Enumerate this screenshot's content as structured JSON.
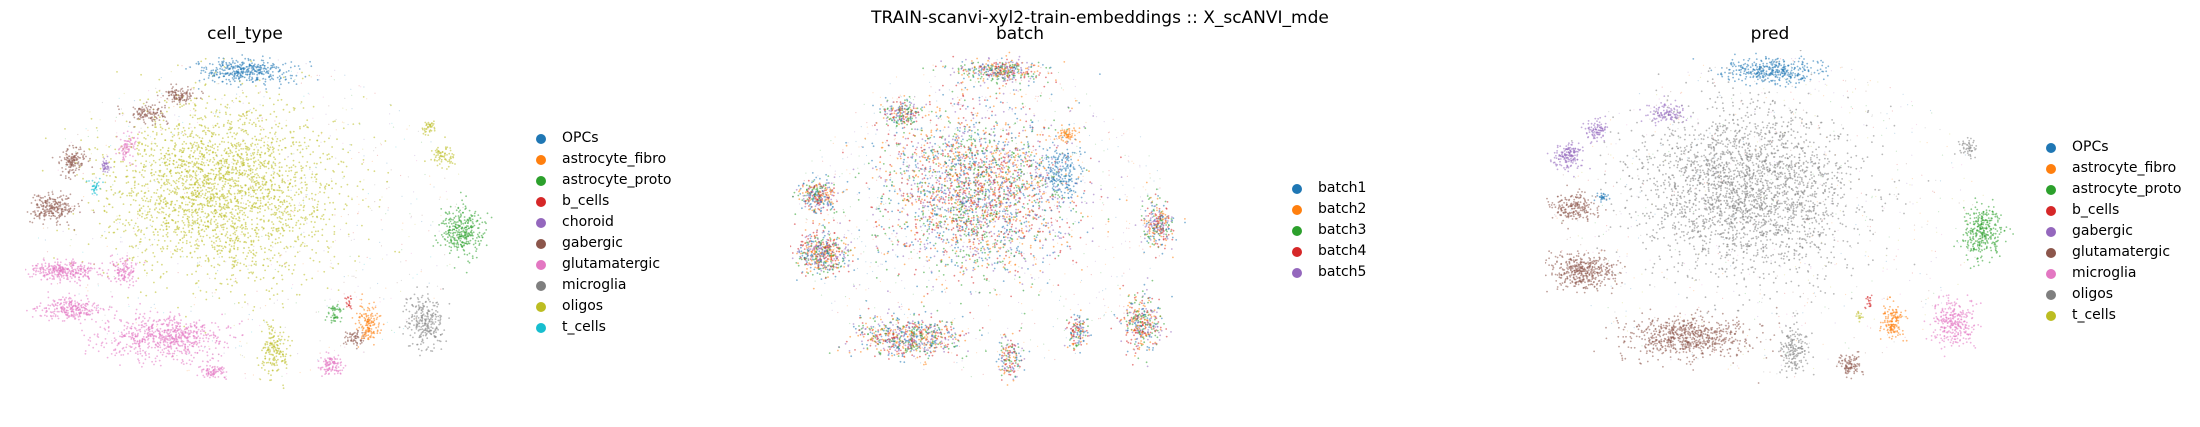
{
  "figure": {
    "suptitle": "TRAIN-scanvi-xyl2-train-embeddings :: X_scANVI_mde"
  },
  "chart_data": [
    {
      "type": "scatter",
      "title": "cell_type",
      "xlabel": "",
      "ylabel": "",
      "grid": false,
      "legend_position": "right",
      "legend": [
        {
          "label": "OPCs",
          "color": "#1f77b4"
        },
        {
          "label": "astrocyte_fibro",
          "color": "#ff7f0e"
        },
        {
          "label": "astrocyte_proto",
          "color": "#2ca02c"
        },
        {
          "label": "b_cells",
          "color": "#d62728"
        },
        {
          "label": "choroid",
          "color": "#9467bd"
        },
        {
          "label": "gabergic",
          "color": "#8c564b"
        },
        {
          "label": "glutamatergic",
          "color": "#e377c2"
        },
        {
          "label": "microglia",
          "color": "#7f7f7f"
        },
        {
          "label": "oligos",
          "color": "#bcbd22"
        },
        {
          "label": "t_cells",
          "color": "#17becf"
        }
      ],
      "clusters": [
        {
          "category": "oligos",
          "cx": 0.42,
          "cy": 0.4,
          "rx": 0.24,
          "ry": 0.25,
          "n": 2600
        },
        {
          "category": "OPCs",
          "cx": 0.47,
          "cy": 0.06,
          "rx": 0.1,
          "ry": 0.035,
          "n": 380
        },
        {
          "category": "glutamatergic",
          "cx": 0.3,
          "cy": 0.82,
          "rx": 0.13,
          "ry": 0.06,
          "n": 700
        },
        {
          "category": "glutamatergic",
          "cx": 0.08,
          "cy": 0.63,
          "rx": 0.07,
          "ry": 0.03,
          "n": 320
        },
        {
          "category": "glutamatergic",
          "cx": 0.1,
          "cy": 0.74,
          "rx": 0.07,
          "ry": 0.03,
          "n": 260
        },
        {
          "category": "glutamatergic",
          "cx": 0.21,
          "cy": 0.63,
          "rx": 0.03,
          "ry": 0.04,
          "n": 120
        },
        {
          "category": "glutamatergic",
          "cx": 0.65,
          "cy": 0.9,
          "rx": 0.025,
          "ry": 0.03,
          "n": 110
        },
        {
          "category": "glutamatergic",
          "cx": 0.22,
          "cy": 0.28,
          "rx": 0.02,
          "ry": 0.04,
          "n": 80
        },
        {
          "category": "glutamatergic",
          "cx": 0.4,
          "cy": 0.92,
          "rx": 0.03,
          "ry": 0.02,
          "n": 80
        },
        {
          "category": "gabergic",
          "cx": 0.06,
          "cy": 0.45,
          "rx": 0.05,
          "ry": 0.04,
          "n": 240
        },
        {
          "category": "gabergic",
          "cx": 0.1,
          "cy": 0.32,
          "rx": 0.03,
          "ry": 0.04,
          "n": 140
        },
        {
          "category": "gabergic",
          "cx": 0.26,
          "cy": 0.18,
          "rx": 0.04,
          "ry": 0.03,
          "n": 120
        },
        {
          "category": "gabergic",
          "cx": 0.33,
          "cy": 0.13,
          "rx": 0.035,
          "ry": 0.025,
          "n": 110
        },
        {
          "category": "gabergic",
          "cx": 0.7,
          "cy": 0.82,
          "rx": 0.02,
          "ry": 0.02,
          "n": 60
        },
        {
          "category": "astrocyte_proto",
          "cx": 0.93,
          "cy": 0.52,
          "rx": 0.045,
          "ry": 0.07,
          "n": 320
        },
        {
          "category": "astrocyte_proto",
          "cx": 0.66,
          "cy": 0.75,
          "rx": 0.015,
          "ry": 0.03,
          "n": 50
        },
        {
          "category": "microglia",
          "cx": 0.85,
          "cy": 0.78,
          "rx": 0.04,
          "ry": 0.07,
          "n": 260
        },
        {
          "category": "astrocyte_fibro",
          "cx": 0.73,
          "cy": 0.78,
          "rx": 0.022,
          "ry": 0.05,
          "n": 150
        },
        {
          "category": "oligos",
          "cx": 0.53,
          "cy": 0.86,
          "rx": 0.03,
          "ry": 0.07,
          "n": 170
        },
        {
          "category": "oligos",
          "cx": 0.89,
          "cy": 0.3,
          "rx": 0.025,
          "ry": 0.03,
          "n": 70
        },
        {
          "category": "oligos",
          "cx": 0.86,
          "cy": 0.22,
          "rx": 0.015,
          "ry": 0.02,
          "n": 40
        },
        {
          "category": "choroid",
          "cx": 0.17,
          "cy": 0.33,
          "rx": 0.012,
          "ry": 0.02,
          "n": 40
        },
        {
          "category": "t_cells",
          "cx": 0.15,
          "cy": 0.39,
          "rx": 0.012,
          "ry": 0.02,
          "n": 35
        },
        {
          "category": "b_cells",
          "cx": 0.69,
          "cy": 0.72,
          "rx": 0.008,
          "ry": 0.02,
          "n": 20
        }
      ]
    },
    {
      "type": "scatter",
      "title": "batch",
      "xlabel": "",
      "ylabel": "",
      "grid": false,
      "legend_position": "right",
      "legend": [
        {
          "label": "batch1",
          "color": "#1f77b4"
        },
        {
          "label": "batch2",
          "color": "#ff7f0e"
        },
        {
          "label": "batch3",
          "color": "#2ca02c"
        },
        {
          "label": "batch4",
          "color": "#d62728"
        },
        {
          "label": "batch5",
          "color": "#9467bd"
        }
      ],
      "clusters": [
        {
          "category": "mixed",
          "cx": 0.47,
          "cy": 0.4,
          "rx": 0.23,
          "ry": 0.24,
          "n": 2800
        },
        {
          "category": "mixed",
          "cx": 0.53,
          "cy": 0.06,
          "rx": 0.1,
          "ry": 0.035,
          "n": 400
        },
        {
          "category": "mixed",
          "cx": 0.3,
          "cy": 0.82,
          "rx": 0.13,
          "ry": 0.06,
          "n": 700
        },
        {
          "category": "mixed",
          "cx": 0.08,
          "cy": 0.58,
          "rx": 0.07,
          "ry": 0.06,
          "n": 500
        },
        {
          "category": "mixed",
          "cx": 0.07,
          "cy": 0.42,
          "rx": 0.05,
          "ry": 0.05,
          "n": 300
        },
        {
          "category": "mixed",
          "cx": 0.28,
          "cy": 0.18,
          "rx": 0.05,
          "ry": 0.04,
          "n": 200
        },
        {
          "category": "mixed",
          "cx": 0.88,
          "cy": 0.78,
          "rx": 0.05,
          "ry": 0.08,
          "n": 360
        },
        {
          "category": "mixed",
          "cx": 0.92,
          "cy": 0.5,
          "rx": 0.04,
          "ry": 0.07,
          "n": 280
        },
        {
          "category": "mixed",
          "cx": 0.72,
          "cy": 0.8,
          "rx": 0.025,
          "ry": 0.05,
          "n": 140
        },
        {
          "category": "mixed",
          "cx": 0.55,
          "cy": 0.88,
          "rx": 0.03,
          "ry": 0.06,
          "n": 160
        },
        {
          "category": "batch1",
          "cx": 0.68,
          "cy": 0.35,
          "rx": 0.05,
          "ry": 0.08,
          "n": 200
        },
        {
          "category": "batch2",
          "cx": 0.69,
          "cy": 0.24,
          "rx": 0.025,
          "ry": 0.02,
          "n": 60
        }
      ]
    },
    {
      "type": "scatter",
      "title": "pred",
      "xlabel": "",
      "ylabel": "",
      "grid": false,
      "legend_position": "right",
      "legend": [
        {
          "label": "OPCs",
          "color": "#1f77b4"
        },
        {
          "label": "astrocyte_fibro",
          "color": "#ff7f0e"
        },
        {
          "label": "astrocyte_proto",
          "color": "#2ca02c"
        },
        {
          "label": "b_cells",
          "color": "#d62728"
        },
        {
          "label": "gabergic",
          "color": "#9467bd"
        },
        {
          "label": "glutamatergic",
          "color": "#8c564b"
        },
        {
          "label": "microglia",
          "color": "#e377c2"
        },
        {
          "label": "oligos",
          "color": "#7f7f7f"
        },
        {
          "label": "t_cells",
          "color": "#bcbd22"
        }
      ],
      "clusters": [
        {
          "category": "oligos",
          "cx": 0.43,
          "cy": 0.4,
          "rx": 0.23,
          "ry": 0.24,
          "n": 2600
        },
        {
          "category": "OPCs",
          "cx": 0.48,
          "cy": 0.06,
          "rx": 0.1,
          "ry": 0.035,
          "n": 380
        },
        {
          "category": "glutamatergic",
          "cx": 0.3,
          "cy": 0.82,
          "rx": 0.13,
          "ry": 0.06,
          "n": 700
        },
        {
          "category": "glutamatergic",
          "cx": 0.08,
          "cy": 0.63,
          "rx": 0.07,
          "ry": 0.05,
          "n": 420
        },
        {
          "category": "glutamatergic",
          "cx": 0.06,
          "cy": 0.45,
          "rx": 0.05,
          "ry": 0.04,
          "n": 200
        },
        {
          "category": "glutamatergic",
          "cx": 0.65,
          "cy": 0.9,
          "rx": 0.025,
          "ry": 0.03,
          "n": 100
        },
        {
          "category": "gabergic",
          "cx": 0.05,
          "cy": 0.3,
          "rx": 0.03,
          "ry": 0.04,
          "n": 160
        },
        {
          "category": "gabergic",
          "cx": 0.26,
          "cy": 0.18,
          "rx": 0.04,
          "ry": 0.03,
          "n": 110
        },
        {
          "category": "gabergic",
          "cx": 0.11,
          "cy": 0.23,
          "rx": 0.025,
          "ry": 0.03,
          "n": 90
        },
        {
          "category": "astrocyte_proto",
          "cx": 0.93,
          "cy": 0.52,
          "rx": 0.045,
          "ry": 0.07,
          "n": 320
        },
        {
          "category": "microglia",
          "cx": 0.87,
          "cy": 0.78,
          "rx": 0.045,
          "ry": 0.07,
          "n": 300
        },
        {
          "category": "astrocyte_fibro",
          "cx": 0.74,
          "cy": 0.78,
          "rx": 0.022,
          "ry": 0.05,
          "n": 150
        },
        {
          "category": "oligos",
          "cx": 0.53,
          "cy": 0.86,
          "rx": 0.03,
          "ry": 0.07,
          "n": 170
        },
        {
          "category": "oligos",
          "cx": 0.9,
          "cy": 0.28,
          "rx": 0.02,
          "ry": 0.025,
          "n": 50
        },
        {
          "category": "OPCs",
          "cx": 0.12,
          "cy": 0.42,
          "rx": 0.015,
          "ry": 0.01,
          "n": 30
        },
        {
          "category": "b_cells",
          "cx": 0.69,
          "cy": 0.72,
          "rx": 0.008,
          "ry": 0.02,
          "n": 20
        },
        {
          "category": "t_cells",
          "cx": 0.67,
          "cy": 0.76,
          "rx": 0.008,
          "ry": 0.015,
          "n": 15
        }
      ]
    }
  ]
}
